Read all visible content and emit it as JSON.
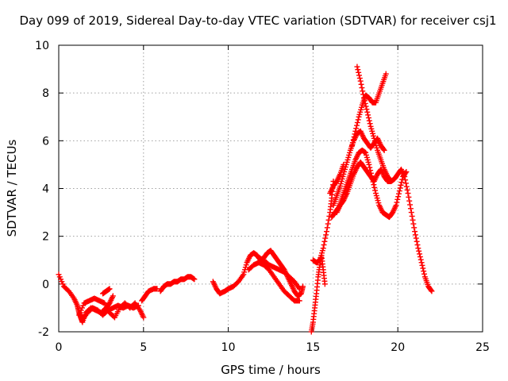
{
  "chart_data": {
    "type": "scatter",
    "title": "Day 099 of 2019, Sidereal Day-to-day VTEC variation (SDTVAR) for receiver csj1",
    "xlabel": "GPS time / hours",
    "ylabel": "SDTVAR / TECUs",
    "xlim": [
      0,
      25
    ],
    "ylim": [
      -2,
      10
    ],
    "x_ticks": [
      "0",
      "5",
      "10",
      "15",
      "20",
      "25"
    ],
    "y_ticks": [
      "-2",
      "0",
      "2",
      "4",
      "6",
      "8",
      "10"
    ],
    "grid": true,
    "marker": "plus",
    "color": "#ff0000",
    "series": [
      {
        "x": [
          0.0,
          0.3,
          0.6,
          0.9,
          1.1,
          1.2,
          1.3,
          1.4,
          1.6,
          1.9,
          2.2,
          2.5,
          2.8,
          3.0,
          3.2
        ],
        "y": [
          0.4,
          -0.1,
          -0.3,
          -0.6,
          -0.9,
          -1.2,
          -1.4,
          -1.6,
          -1.2,
          -1.0,
          -1.1,
          -1.2,
          -1.0,
          -0.8,
          -0.5
        ]
      },
      {
        "x": [
          1.2,
          1.5,
          1.8,
          2.1,
          2.4,
          2.7,
          3.0,
          3.3,
          3.6,
          3.9,
          4.2,
          4.5,
          4.8,
          5.0
        ],
        "y": [
          -1.3,
          -0.8,
          -0.7,
          -0.6,
          -0.7,
          -0.8,
          -1.2,
          -1.4,
          -1.0,
          -0.8,
          -1.0,
          -0.8,
          -1.1,
          -1.4
        ]
      },
      {
        "x": [
          1.4,
          1.7,
          2.0,
          2.3,
          2.6,
          2.9,
          3.2,
          3.5,
          3.8,
          4.1,
          4.4,
          4.7
        ],
        "y": [
          -1.5,
          -1.2,
          -1.0,
          -1.1,
          -1.3,
          -1.1,
          -1.0,
          -0.9,
          -1.0,
          -0.9,
          -1.0,
          -0.9
        ]
      },
      {
        "x": [
          2.6,
          2.8,
          3.0
        ],
        "y": [
          -0.4,
          -0.3,
          -0.2
        ]
      },
      {
        "x": [
          4.9,
          5.1,
          5.3,
          5.6,
          5.8
        ],
        "y": [
          -0.7,
          -0.5,
          -0.3,
          -0.2,
          -0.2
        ]
      },
      {
        "x": [
          6.0,
          6.2,
          6.4,
          6.6,
          6.8,
          7.0,
          7.2,
          7.4,
          7.6,
          7.8,
          8.0
        ],
        "y": [
          -0.3,
          -0.1,
          0.0,
          0.0,
          0.1,
          0.1,
          0.2,
          0.2,
          0.3,
          0.3,
          0.2
        ]
      },
      {
        "x": [
          9.1,
          9.3,
          9.5,
          9.8,
          10.0,
          10.3,
          10.6,
          10.9,
          11.1,
          11.3,
          11.5,
          11.7,
          11.9,
          12.1,
          12.3,
          12.5,
          12.7,
          12.9,
          13.1,
          13.3,
          13.5,
          13.7,
          13.9,
          14.1,
          14.3,
          14.4
        ],
        "y": [
          0.1,
          -0.2,
          -0.4,
          -0.3,
          -0.2,
          -0.1,
          0.1,
          0.4,
          0.9,
          1.2,
          1.3,
          1.2,
          1.0,
          1.1,
          1.3,
          1.4,
          1.2,
          1.0,
          0.8,
          0.6,
          0.3,
          0.0,
          -0.3,
          -0.5,
          -0.4,
          -0.1
        ]
      },
      {
        "x": [
          11.2,
          11.5,
          11.8,
          12.1,
          12.4,
          12.7,
          13.0,
          13.3,
          13.6,
          13.9,
          14.2
        ],
        "y": [
          0.6,
          0.8,
          0.9,
          0.8,
          0.6,
          0.3,
          0.0,
          -0.3,
          -0.5,
          -0.7,
          -0.7
        ]
      },
      {
        "x": [
          11.8,
          12.1,
          12.4,
          12.7,
          13.0,
          13.3,
          13.6,
          13.9,
          14.2
        ],
        "y": [
          1.1,
          1.0,
          0.8,
          0.7,
          0.6,
          0.5,
          0.3,
          0.1,
          -0.2
        ]
      },
      {
        "x": [
          14.9,
          15.0,
          15.1,
          15.2,
          15.3,
          15.4,
          15.5,
          15.6,
          15.7
        ],
        "y": [
          -2.0,
          -1.6,
          -1.0,
          -0.4,
          0.3,
          0.8,
          1.2,
          0.6,
          0.0
        ]
      },
      {
        "x": [
          15.0,
          15.2,
          15.4,
          15.6,
          15.8,
          16.0,
          16.1,
          16.2
        ],
        "y": [
          1.0,
          0.9,
          1.0,
          1.5,
          2.2,
          3.0,
          3.6,
          4.3
        ]
      },
      {
        "x": [
          16.1,
          16.3,
          16.5,
          16.7,
          16.9,
          17.1,
          17.3,
          17.5,
          17.7,
          17.9,
          18.1,
          18.3,
          18.5,
          18.7,
          18.9,
          19.1,
          19.3,
          19.5,
          19.7,
          19.9,
          20.1,
          20.3,
          20.5
        ],
        "y": [
          2.8,
          3.0,
          3.2,
          3.6,
          4.0,
          4.4,
          4.8,
          5.2,
          5.5,
          5.6,
          5.5,
          5.0,
          4.4,
          3.8,
          3.3,
          3.0,
          2.9,
          2.8,
          3.0,
          3.3,
          3.9,
          4.5,
          4.7
        ]
      },
      {
        "x": [
          16.2,
          16.4,
          16.6,
          16.8,
          17.0,
          17.2,
          17.4,
          17.6,
          17.8,
          18.0,
          18.2,
          18.4,
          18.6,
          18.8,
          19.0,
          19.2
        ],
        "y": [
          3.3,
          3.7,
          4.1,
          4.6,
          5.1,
          5.6,
          6.0,
          6.3,
          6.4,
          6.1,
          5.9,
          5.7,
          5.9,
          6.1,
          5.8,
          5.6
        ]
      },
      {
        "x": [
          16.4,
          16.6,
          16.8,
          17.0,
          17.2,
          17.4,
          17.6,
          17.8,
          18.0,
          18.2,
          18.4,
          18.6,
          18.8,
          19.0,
          19.2,
          19.4,
          19.6,
          19.8,
          20.0,
          20.2,
          20.4,
          20.6,
          20.8,
          21.0,
          21.2,
          21.4,
          21.6,
          21.8,
          22.0
        ],
        "y": [
          3.0,
          3.3,
          3.5,
          3.8,
          4.2,
          4.6,
          4.9,
          5.1,
          4.9,
          4.7,
          4.5,
          4.3,
          4.6,
          4.8,
          4.5,
          4.3,
          4.3,
          4.4,
          4.6,
          4.8,
          4.5,
          3.8,
          3.0,
          2.2,
          1.5,
          0.9,
          0.3,
          -0.1,
          -0.3
        ]
      },
      {
        "x": [
          17.3,
          17.5,
          17.7,
          17.9,
          18.1,
          18.3,
          18.5,
          18.7,
          18.9,
          19.1,
          19.3
        ],
        "y": [
          5.8,
          6.4,
          7.0,
          7.5,
          7.9,
          7.8,
          7.6,
          7.6,
          8.0,
          8.4,
          8.8
        ]
      },
      {
        "x": [
          17.6,
          17.8,
          18.0,
          18.2,
          18.4,
          18.6,
          18.8,
          19.0,
          19.2,
          19.4,
          19.6
        ],
        "y": [
          9.1,
          8.5,
          7.8,
          7.2,
          6.6,
          6.1,
          5.6,
          5.2,
          4.8,
          4.5,
          4.3
        ]
      },
      {
        "x": [
          16.0,
          16.2,
          16.4,
          16.6,
          16.8
        ],
        "y": [
          3.8,
          4.1,
          4.3,
          4.6,
          5.0
        ]
      }
    ]
  }
}
